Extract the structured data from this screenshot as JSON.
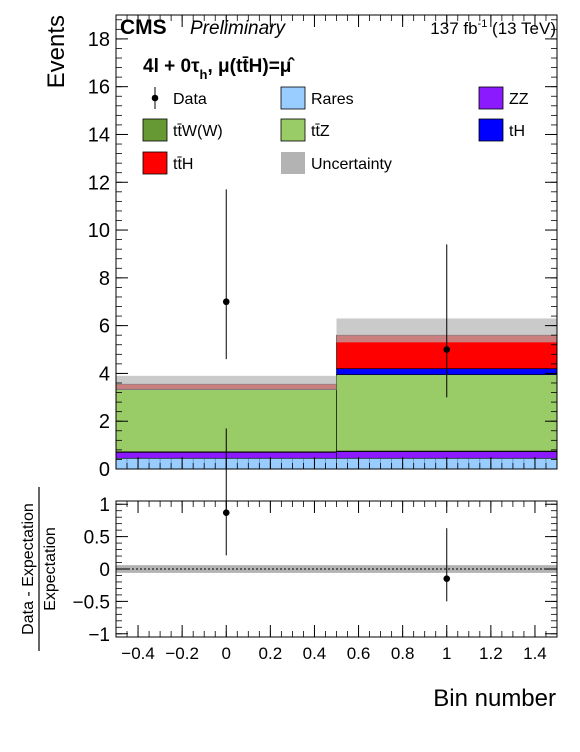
{
  "header": {
    "experiment": "CMS",
    "status": "Preliminary",
    "lumi": "137 fb",
    "lumi_sup": "-1",
    "energy": " (13 TeV)"
  },
  "category": {
    "base": "4l + 0τ",
    "sub": "h",
    "tail": ",  μ(tt̄H)=μ̂"
  },
  "legend": [
    {
      "label": "Data",
      "kind": "marker",
      "color": "#000000"
    },
    {
      "label": "Rares",
      "kind": "box",
      "color": "#99ccff"
    },
    {
      "label": "ZZ",
      "kind": "box",
      "color": "#8c1aff"
    },
    {
      "label": "tt̄W(W)",
      "kind": "box",
      "color": "#669933"
    },
    {
      "label": "tt̄Z",
      "kind": "box",
      "color": "#99cc66"
    },
    {
      "label": "tH",
      "kind": "box",
      "color": "#0000ff"
    },
    {
      "label": "tt̄H",
      "kind": "box",
      "color": "#ff0000"
    },
    {
      "label": "Uncertainty",
      "kind": "box",
      "color": "#b3b3b3"
    }
  ],
  "chart_data": [
    {
      "type": "bar",
      "stacked": true,
      "xlabel": "Bin number",
      "ylabel": "Events",
      "xlim": [
        -0.5,
        1.5
      ],
      "ylim": [
        0,
        19
      ],
      "x_ticks": [
        -0.4,
        -0.2,
        0,
        0.2,
        0.4,
        0.6,
        0.8,
        1,
        1.2,
        1.4
      ],
      "x_tick_labels": [
        "−0.4",
        "−0.2",
        "0",
        "0.2",
        "0.4",
        "0.6",
        "0.8",
        "1",
        "1.2",
        "1.4"
      ],
      "y_ticks": [
        0,
        2,
        4,
        6,
        8,
        10,
        12,
        14,
        16,
        18
      ],
      "y_tick_labels": [
        "0",
        "2",
        "4",
        "6",
        "8",
        "10",
        "12",
        "14",
        "16",
        "18"
      ],
      "bins": [
        [
          -0.5,
          0.5
        ],
        [
          0.5,
          1.5
        ]
      ],
      "series": [
        {
          "name": "Rares",
          "color": "#99ccff",
          "values": [
            0.45,
            0.45
          ]
        },
        {
          "name": "ZZ",
          "color": "#8c1aff",
          "values": [
            0.25,
            0.28
          ]
        },
        {
          "name": "tt̄W(W)",
          "color": "#669933",
          "values": [
            0.02,
            0.02
          ]
        },
        {
          "name": "tt̄Z",
          "color": "#99cc66",
          "values": [
            2.6,
            3.2
          ]
        },
        {
          "name": "tH",
          "color": "#0000ff",
          "values": [
            0.02,
            0.25
          ]
        },
        {
          "name": "tt̄H",
          "color": "#ff0000",
          "values": [
            0.21,
            1.4
          ]
        }
      ],
      "uncertainty": {
        "name": "Uncertainty",
        "color": "#b3b3b3",
        "low": [
          3.3,
          5.3
        ],
        "high": [
          3.9,
          6.3
        ]
      },
      "data": {
        "name": "Data",
        "x": [
          0,
          1
        ],
        "y": [
          7,
          5
        ],
        "err_low": [
          2.4,
          2.0
        ],
        "err_high": [
          4.7,
          4.4
        ]
      }
    },
    {
      "type": "scatter",
      "xlabel": "Bin number",
      "ylabel": "Data - Expectation",
      "ylabel_denominator": "Expectation",
      "xlim": [
        -0.5,
        1.5
      ],
      "ylim": [
        -1.05,
        1.05
      ],
      "y_ticks": [
        -1,
        -0.5,
        0,
        0.5,
        1
      ],
      "y_tick_labels": [
        "−1",
        "−0.5",
        "0",
        "0.5",
        "1"
      ],
      "uncertainty_band": [
        -0.06,
        0.06
      ],
      "points": {
        "x": [
          0,
          1
        ],
        "y": [
          0.87,
          -0.15
        ],
        "err_low": [
          0.66,
          0.35
        ],
        "err_high": [
          1.3,
          0.78
        ]
      }
    }
  ]
}
